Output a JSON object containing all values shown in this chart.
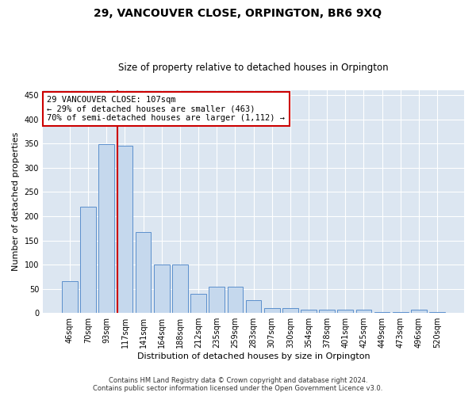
{
  "title": "29, VANCOUVER CLOSE, ORPINGTON, BR6 9XQ",
  "subtitle": "Size of property relative to detached houses in Orpington",
  "xlabel": "Distribution of detached houses by size in Orpington",
  "ylabel": "Number of detached properties",
  "categories": [
    "46sqm",
    "70sqm",
    "93sqm",
    "117sqm",
    "141sqm",
    "164sqm",
    "188sqm",
    "212sqm",
    "235sqm",
    "259sqm",
    "283sqm",
    "307sqm",
    "330sqm",
    "354sqm",
    "378sqm",
    "401sqm",
    "425sqm",
    "449sqm",
    "473sqm",
    "496sqm",
    "520sqm"
  ],
  "values": [
    65,
    220,
    348,
    345,
    168,
    100,
    100,
    40,
    55,
    55,
    27,
    10,
    10,
    7,
    7,
    7,
    7,
    2,
    2,
    7,
    2
  ],
  "bar_color": "#c5d8ed",
  "bar_edge_color": "#5b8fcc",
  "annotation_label": "29 VANCOUVER CLOSE: 107sqm",
  "annotation_line1": "← 29% of detached houses are smaller (463)",
  "annotation_line2": "70% of semi-detached houses are larger (1,112) →",
  "annotation_box_facecolor": "#ffffff",
  "annotation_box_edgecolor": "#cc0000",
  "vline_color": "#cc0000",
  "ylim": [
    0,
    460
  ],
  "yticks": [
    0,
    50,
    100,
    150,
    200,
    250,
    300,
    350,
    400,
    450
  ],
  "footer_line1": "Contains HM Land Registry data © Crown copyright and database right 2024.",
  "footer_line2": "Contains public sector information licensed under the Open Government Licence v3.0.",
  "plot_bg_color": "#dce6f1",
  "fig_bg_color": "#ffffff",
  "title_fontsize": 10,
  "subtitle_fontsize": 8.5,
  "ylabel_fontsize": 8,
  "xlabel_fontsize": 8,
  "tick_fontsize": 7,
  "footer_fontsize": 6,
  "annot_fontsize": 7.5
}
